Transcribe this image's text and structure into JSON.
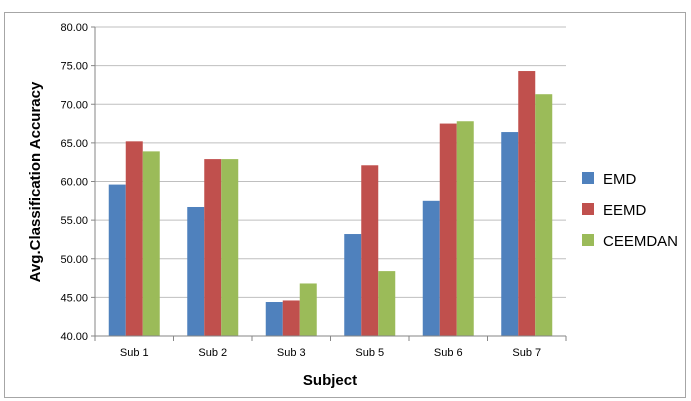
{
  "chart_data": {
    "type": "bar",
    "categories": [
      "Sub 1",
      "Sub 2",
      "Sub 3",
      "Sub 5",
      "Sub 6",
      "Sub 7"
    ],
    "series": [
      {
        "name": "EMD",
        "color": "#4f81bd",
        "values": [
          59.6,
          56.7,
          44.4,
          53.2,
          57.5,
          66.4
        ]
      },
      {
        "name": "EEMD",
        "color": "#c0504d",
        "values": [
          65.2,
          62.9,
          44.6,
          62.1,
          67.5,
          74.3
        ]
      },
      {
        "name": "CEEMDAN",
        "color": "#9bbb59",
        "values": [
          63.9,
          62.9,
          46.8,
          48.4,
          67.8,
          71.3
        ]
      }
    ],
    "yticks": [
      "40.00",
      "45.00",
      "50.00",
      "55.00",
      "60.00",
      "65.00",
      "70.00",
      "75.00",
      "80.00"
    ],
    "ylim": [
      40,
      80
    ],
    "xlabel": "Subject",
    "ylabel": "Avg.Classification Accuracy",
    "grid": "horizontal",
    "legend_position": "right"
  }
}
